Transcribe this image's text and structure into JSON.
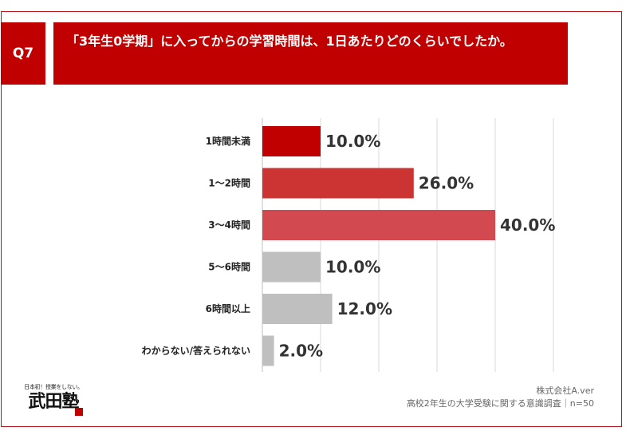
{
  "question": {
    "badge": "Q7",
    "text": "「3年生0学期」に入ってからの学習時間は、1日あたりどのくらいでしたか。"
  },
  "chart_data": {
    "type": "bar",
    "orientation": "horizontal",
    "categories": [
      "1時間未満",
      "1〜2時間",
      "3〜4時間",
      "5〜6時間",
      "6時間以上",
      "わからない/答えられない"
    ],
    "values": [
      10.0,
      26.0,
      40.0,
      10.0,
      12.0,
      2.0
    ],
    "value_labels": [
      "10.0%",
      "26.0%",
      "40.0%",
      "10.0%",
      "12.0%",
      "2.0%"
    ],
    "bar_colors": [
      "#c00000",
      "#cc3333",
      "#d24a4f",
      "#bfbfbf",
      "#bfbfbf",
      "#bfbfbf"
    ],
    "xlim": [
      0,
      50
    ],
    "grid": true,
    "unit": "%"
  },
  "source": {
    "company": "株式会社A.ver",
    "survey": "高校2年生の大学受験に関する意識調査｜n=50"
  },
  "logo": {
    "tagline": "日本初！授業をしない。",
    "name": "武田塾"
  }
}
